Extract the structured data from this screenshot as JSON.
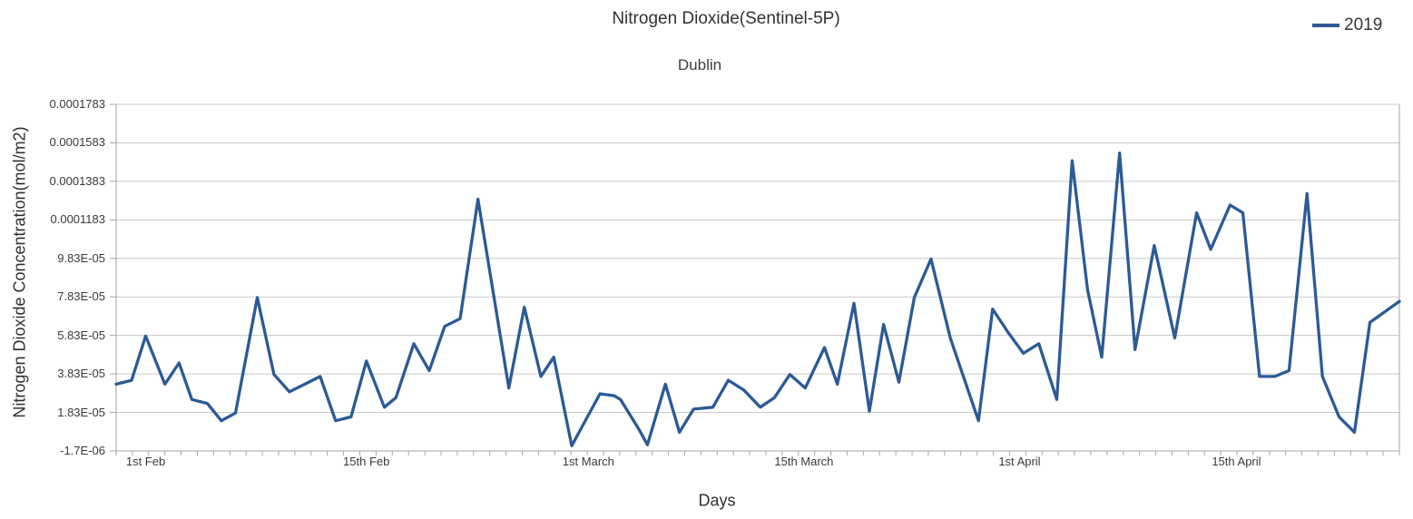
{
  "colors": {
    "series_2019": "#2b5a96",
    "grid": "#c9c9c9",
    "axis": "#a6a6a6",
    "text": "#333333"
  },
  "legend": {
    "series_label": "2019"
  },
  "chart_data": {
    "type": "line",
    "title": "Nitrogen Dioxide(Sentinel-5P)",
    "subtitle": "Dublin",
    "xlabel": "Days",
    "ylabel": "Nitrogen Dioxide Concentration(mol/m2)",
    "ylim": [
      -1.7e-06,
      0.0001783
    ],
    "grid": "horizontal",
    "legend_position": "top-right",
    "y_tick_labels": [
      "0.0001783",
      "0.0001583",
      "0.0001383",
      "0.0001183",
      "9.83E-05",
      "7.83E-05",
      "5.83E-05",
      "3.83E-05",
      "1.83E-05",
      "-1.7E-06"
    ],
    "y_tick_values": [
      0.0001783,
      0.0001583,
      0.0001383,
      0.0001183,
      9.83e-05,
      7.83e-05,
      5.83e-05,
      3.83e-05,
      1.83e-05,
      -1.7e-06
    ],
    "x_ticks": [
      {
        "label": "1st Feb",
        "pos": 0.023
      },
      {
        "label": "15th Feb",
        "pos": 0.195
      },
      {
        "label": "1st March",
        "pos": 0.368
      },
      {
        "label": "15th March",
        "pos": 0.536
      },
      {
        "label": "1st April",
        "pos": 0.704
      },
      {
        "label": "15th April",
        "pos": 0.873
      }
    ],
    "series": [
      {
        "name": "2019",
        "color": "#2b5a96",
        "x": [
          0,
          0.012,
          0.023,
          0.038,
          0.049,
          0.059,
          0.071,
          0.082,
          0.093,
          0.11,
          0.123,
          0.135,
          0.147,
          0.159,
          0.171,
          0.183,
          0.195,
          0.209,
          0.218,
          0.232,
          0.244,
          0.256,
          0.268,
          0.282,
          0.294,
          0.306,
          0.318,
          0.331,
          0.341,
          0.355,
          0.377,
          0.388,
          0.393,
          0.407,
          0.414,
          0.428,
          0.439,
          0.45,
          0.465,
          0.477,
          0.489,
          0.502,
          0.513,
          0.525,
          0.537,
          0.552,
          0.562,
          0.575,
          0.587,
          0.598,
          0.61,
          0.622,
          0.635,
          0.65,
          0.672,
          0.683,
          0.695,
          0.707,
          0.719,
          0.733,
          0.745,
          0.757,
          0.768,
          0.782,
          0.794,
          0.809,
          0.825,
          0.842,
          0.853,
          0.868,
          0.878,
          0.891,
          0.903,
          0.914,
          0.928,
          0.94,
          0.953,
          0.965,
          0.977,
          1.0
        ],
        "values": [
          3.3e-05,
          3.5e-05,
          5.8e-05,
          3.3e-05,
          4.4e-05,
          2.5e-05,
          2.3e-05,
          1.4e-05,
          1.8e-05,
          7.8e-05,
          3.8e-05,
          2.9e-05,
          3.3e-05,
          3.7e-05,
          1.4e-05,
          1.6e-05,
          4.5e-05,
          2.1e-05,
          2.6e-05,
          5.4e-05,
          4e-05,
          6.3e-05,
          6.7e-05,
          0.000129,
          8e-05,
          3.1e-05,
          7.3e-05,
          3.7e-05,
          4.7e-05,
          1e-06,
          2.8e-05,
          2.7e-05,
          2.5e-05,
          1e-05,
          1.5e-06,
          3.3e-05,
          8e-06,
          2e-05,
          2.1e-05,
          3.5e-05,
          3e-05,
          2.1e-05,
          2.6e-05,
          3.8e-05,
          3.1e-05,
          5.2e-05,
          3.3e-05,
          7.5e-05,
          1.9e-05,
          6.4e-05,
          3.4e-05,
          7.8e-05,
          9.8e-05,
          5.7e-05,
          1.4e-05,
          7.2e-05,
          6e-05,
          4.9e-05,
          5.4e-05,
          2.5e-05,
          0.000149,
          8.2e-05,
          4.7e-05,
          0.000153,
          5.1e-05,
          0.000105,
          5.7e-05,
          0.000122,
          0.000103,
          0.000126,
          0.000122,
          3.7e-05,
          3.7e-05,
          4e-05,
          0.000132,
          3.7e-05,
          1.6e-05,
          8e-06,
          6.5e-05,
          7.6e-05
        ]
      }
    ]
  }
}
